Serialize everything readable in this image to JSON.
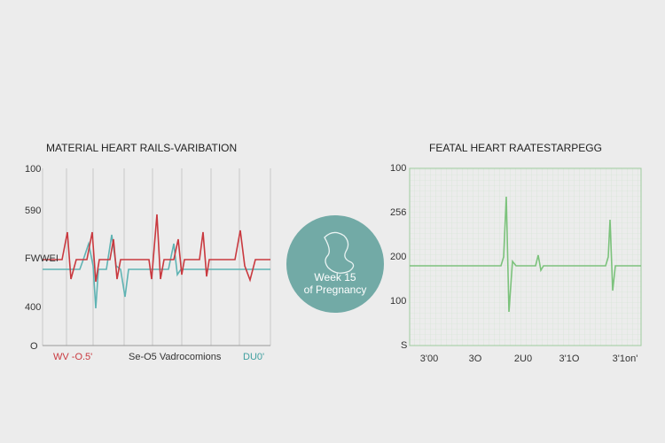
{
  "left_panel": {
    "title": "MATERIAL HEART RAILS-VARIBATION",
    "y_labels": [
      "100",
      "590",
      "FWWEI",
      "400",
      "O"
    ],
    "x_labels": [
      "WV -O.5'",
      "Se-O5 Vadrocomions",
      "DU0'"
    ]
  },
  "badge": {
    "lines": [
      "Week 15",
      "of Pregnancy"
    ]
  },
  "right_panel": {
    "title": "FEATAL HEART RAATESTARPEGG",
    "y_labels": [
      "100",
      "256",
      "200",
      "100",
      "S"
    ],
    "x_labels": [
      "3'00",
      "3O",
      "2U0",
      "3'1O",
      "3'1on'"
    ]
  }
}
